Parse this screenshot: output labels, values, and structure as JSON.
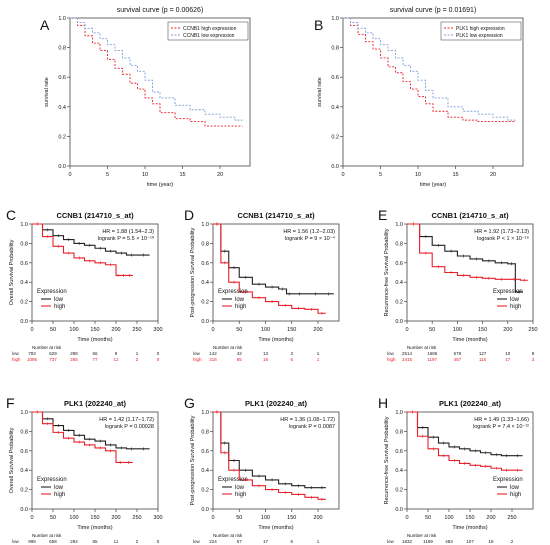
{
  "panel_letters": [
    "A",
    "B",
    "C",
    "D",
    "E",
    "F",
    "G",
    "H"
  ],
  "colors": {
    "high": "#e8202a",
    "low": "#222222",
    "low_dotted": "#7b9fd8",
    "grid": "#999999"
  },
  "chart_data": [
    {
      "type": "line",
      "panel": "A",
      "title": "survival curve (p = 0.00626)",
      "xlabel": "time (year)",
      "ylabel": "survival rate",
      "xlim": [
        0,
        24
      ],
      "ylim": [
        0,
        1
      ],
      "xticks": [
        "0",
        "5",
        "10",
        "15",
        "20"
      ],
      "yticks": [
        "0.0",
        "0.2",
        "0.4",
        "0.6",
        "0.8",
        "1.0"
      ],
      "legend": "top-right",
      "series": [
        {
          "name": "CCNB1 high expression",
          "style": "dotted-red",
          "x": [
            0,
            1,
            2,
            3,
            4,
            5,
            6,
            7,
            8,
            9,
            10,
            11,
            12,
            14,
            16,
            18,
            20,
            22,
            23
          ],
          "y": [
            1.0,
            0.95,
            0.88,
            0.83,
            0.78,
            0.72,
            0.66,
            0.62,
            0.56,
            0.52,
            0.46,
            0.42,
            0.36,
            0.32,
            0.3,
            0.27,
            0.27,
            0.27,
            0.27
          ]
        },
        {
          "name": "CCNB1 low expression",
          "style": "dotted-blue",
          "x": [
            0,
            1,
            2,
            3,
            4,
            5,
            6,
            7,
            8,
            9,
            10,
            11,
            12,
            14,
            16,
            18,
            20,
            22,
            23
          ],
          "y": [
            1.0,
            0.97,
            0.93,
            0.9,
            0.86,
            0.82,
            0.78,
            0.73,
            0.68,
            0.64,
            0.58,
            0.5,
            0.46,
            0.41,
            0.38,
            0.35,
            0.33,
            0.31,
            0.31
          ]
        }
      ]
    },
    {
      "type": "line",
      "panel": "B",
      "title": "survival curve (p = 0.01691)",
      "xlabel": "time (year)",
      "ylabel": "survival rate",
      "xlim": [
        0,
        24
      ],
      "ylim": [
        0,
        1
      ],
      "xticks": [
        "0",
        "5",
        "10",
        "15",
        "20"
      ],
      "yticks": [
        "0.0",
        "0.2",
        "0.4",
        "0.6",
        "0.8",
        "1.0"
      ],
      "legend": "top-right",
      "series": [
        {
          "name": "PLK1 high expression",
          "style": "dotted-red",
          "x": [
            0,
            1,
            2,
            3,
            4,
            5,
            6,
            7,
            8,
            9,
            10,
            11,
            12,
            14,
            16,
            18,
            20,
            22,
            23
          ],
          "y": [
            1.0,
            0.95,
            0.89,
            0.84,
            0.79,
            0.73,
            0.67,
            0.63,
            0.57,
            0.52,
            0.47,
            0.42,
            0.37,
            0.33,
            0.31,
            0.3,
            0.3,
            0.3,
            0.3
          ]
        },
        {
          "name": "PLK1 low expression",
          "style": "dotted-blue",
          "x": [
            0,
            1,
            2,
            3,
            4,
            5,
            6,
            7,
            8,
            9,
            10,
            11,
            12,
            14,
            16,
            18,
            20,
            22,
            23
          ],
          "y": [
            1.0,
            0.97,
            0.93,
            0.9,
            0.86,
            0.82,
            0.78,
            0.73,
            0.68,
            0.64,
            0.58,
            0.51,
            0.46,
            0.4,
            0.37,
            0.35,
            0.33,
            0.31,
            0.31
          ]
        }
      ]
    },
    {
      "type": "line",
      "panel": "C",
      "title": "CCNB1 (214710_s_at)",
      "stats": [
        "HR = 1.88 (1.54−2.3)",
        "logrank P = 5.5 × 10⁻¹⁰"
      ],
      "xlabel": "Time (months)",
      "ylabel": "Overall Survival Probability",
      "xlim": [
        0,
        300
      ],
      "ylim": [
        0,
        1
      ],
      "xticks": [
        "0",
        "50",
        "100",
        "150",
        "200",
        "250",
        "300"
      ],
      "yticks": [
        "0.0",
        "0.2",
        "0.4",
        "0.6",
        "0.8",
        "1.0"
      ],
      "legend_title": "Expression",
      "legend": "bottom-left",
      "risk_header": "Number at risk",
      "risk_table": {
        "low": [
          "783",
          "629",
          "288",
          "66",
          "9",
          "1",
          "0"
        ],
        "high": [
          "1096",
          "737",
          "265",
          "77",
          "12",
          "2",
          "0"
        ]
      },
      "series": [
        {
          "name": "low",
          "x": [
            0,
            25,
            50,
            75,
            100,
            125,
            150,
            175,
            200,
            225,
            250,
            280
          ],
          "y": [
            1.0,
            0.94,
            0.88,
            0.84,
            0.8,
            0.78,
            0.75,
            0.72,
            0.7,
            0.68,
            0.68,
            0.68
          ]
        },
        {
          "name": "high",
          "x": [
            0,
            25,
            50,
            75,
            100,
            125,
            150,
            175,
            200,
            210,
            225,
            240
          ],
          "y": [
            1.0,
            0.87,
            0.77,
            0.7,
            0.65,
            0.62,
            0.6,
            0.58,
            0.47,
            0.47,
            0.47,
            0.47
          ]
        }
      ]
    },
    {
      "type": "line",
      "panel": "D",
      "title": "CCNB1 (214710_s_at)",
      "stats": [
        "HR = 1.56 (1.2−2.03)",
        "logrank P = 9 × 10⁻⁴"
      ],
      "xlabel": "Time (months)",
      "ylabel": "Post-progression Survival Probability",
      "xlim": [
        0,
        240
      ],
      "ylim": [
        0,
        1
      ],
      "xticks": [
        "0",
        "50",
        "100",
        "150",
        "200"
      ],
      "yticks": [
        "0.0",
        "0.2",
        "0.4",
        "0.6",
        "0.8",
        "1.0"
      ],
      "legend_title": "Expression",
      "legend": "bottom-left",
      "risk_header": "Number at risk",
      "risk_table": {
        "low": [
          "142",
          "42",
          "13",
          "3",
          "1"
        ],
        "high": [
          "316",
          "65",
          "18",
          "6",
          "1"
        ]
      },
      "series": [
        {
          "name": "low",
          "x": [
            0,
            15,
            30,
            50,
            75,
            100,
            125,
            140,
            150,
            180,
            210,
            230
          ],
          "y": [
            1.0,
            0.72,
            0.55,
            0.45,
            0.38,
            0.35,
            0.33,
            0.28,
            0.28,
            0.28,
            0.28,
            0.28
          ]
        },
        {
          "name": "high",
          "x": [
            0,
            15,
            30,
            50,
            75,
            100,
            125,
            150,
            175,
            200,
            215
          ],
          "y": [
            1.0,
            0.6,
            0.4,
            0.3,
            0.24,
            0.2,
            0.16,
            0.13,
            0.12,
            0.08,
            0.08
          ]
        }
      ]
    },
    {
      "type": "line",
      "panel": "E",
      "title": "CCNB1 (214710_s_at)",
      "stats": [
        "HR = 1.92 (1.73−2.13)",
        "logrank P < 1 × 10⁻¹⁶"
      ],
      "xlabel": "Time (months)",
      "ylabel": "Recurrence-free Survival Probability",
      "xlim": [
        0,
        250
      ],
      "ylim": [
        0,
        1
      ],
      "xticks": [
        "0",
        "50",
        "100",
        "150",
        "200",
        "250"
      ],
      "yticks": [
        "0.0",
        "0.2",
        "0.4",
        "0.6",
        "0.8",
        "1.0"
      ],
      "legend_title": "Expression",
      "legend": "bottom-right",
      "risk_header": "Number at risk",
      "risk_table": {
        "low": [
          "2514",
          "1686",
          "679",
          "127",
          "10",
          "9"
        ],
        "high": [
          "2415",
          "1197",
          "457",
          "115",
          "17",
          "3"
        ]
      },
      "series": [
        {
          "name": "low",
          "x": [
            0,
            25,
            50,
            75,
            100,
            125,
            150,
            175,
            200,
            215,
            230
          ],
          "y": [
            1.0,
            0.87,
            0.78,
            0.72,
            0.67,
            0.64,
            0.62,
            0.6,
            0.59,
            0.3,
            0.3
          ]
        },
        {
          "name": "high",
          "x": [
            0,
            25,
            50,
            75,
            100,
            125,
            150,
            175,
            200,
            225,
            240
          ],
          "y": [
            1.0,
            0.7,
            0.56,
            0.5,
            0.47,
            0.45,
            0.44,
            0.43,
            0.43,
            0.42,
            0.42
          ]
        }
      ]
    },
    {
      "type": "line",
      "panel": "F",
      "title": "PLK1 (202240_at)",
      "stats": [
        "HR = 1.42 (1.17−1.72)",
        "logrank P = 0.00028"
      ],
      "xlabel": "Time (months)",
      "ylabel": "Overall Survival Probability",
      "xlim": [
        0,
        300
      ],
      "ylim": [
        0,
        1
      ],
      "xticks": [
        "0",
        "50",
        "100",
        "150",
        "200",
        "250",
        "300"
      ],
      "yticks": [
        "0.0",
        "0.2",
        "0.4",
        "0.6",
        "0.8",
        "1.0"
      ],
      "legend_title": "Expression",
      "legend": "bottom-left",
      "risk_header": "Number at risk",
      "risk_table": {
        "low": [
          "995",
          "658",
          "292",
          "85",
          "11",
          "2",
          "0"
        ],
        "high": [
          "884",
          "708",
          "261",
          "58",
          "10",
          "1",
          "0"
        ]
      },
      "series": [
        {
          "name": "low",
          "x": [
            0,
            25,
            50,
            75,
            100,
            125,
            150,
            175,
            200,
            225,
            250,
            280
          ],
          "y": [
            1.0,
            0.93,
            0.86,
            0.81,
            0.76,
            0.72,
            0.7,
            0.66,
            0.63,
            0.62,
            0.62,
            0.62
          ]
        },
        {
          "name": "high",
          "x": [
            0,
            25,
            50,
            75,
            100,
            125,
            150,
            175,
            200,
            220,
            240
          ],
          "y": [
            1.0,
            0.88,
            0.79,
            0.73,
            0.69,
            0.66,
            0.63,
            0.6,
            0.48,
            0.48,
            0.48
          ]
        }
      ]
    },
    {
      "type": "line",
      "panel": "G",
      "title": "PLK1 (202240_at)",
      "stats": [
        "HR = 1.36 (1.08−1.72)",
        "logrank P = 0.0087"
      ],
      "xlabel": "Time (months)",
      "ylabel": "Post-progression Survival Probability",
      "xlim": [
        0,
        240
      ],
      "ylim": [
        0,
        1
      ],
      "xticks": [
        "0",
        "50",
        "100",
        "150",
        "200"
      ],
      "yticks": [
        "0.0",
        "0.2",
        "0.4",
        "0.6",
        "0.8",
        "1.0"
      ],
      "legend_title": "Expression",
      "legend": "bottom-left",
      "risk_header": "Number at risk",
      "risk_table": {
        "low": [
          "224",
          "57",
          "17",
          "6",
          "1"
        ],
        "high": [
          "234",
          "50",
          "14",
          "3",
          "1"
        ]
      },
      "series": [
        {
          "name": "low",
          "x": [
            0,
            15,
            30,
            50,
            75,
            100,
            125,
            150,
            175,
            200,
            215
          ],
          "y": [
            1.0,
            0.68,
            0.5,
            0.4,
            0.34,
            0.3,
            0.26,
            0.24,
            0.22,
            0.22,
            0.22
          ]
        },
        {
          "name": "high",
          "x": [
            0,
            15,
            30,
            50,
            75,
            100,
            125,
            150,
            175,
            200,
            215
          ],
          "y": [
            1.0,
            0.58,
            0.4,
            0.3,
            0.24,
            0.2,
            0.17,
            0.15,
            0.12,
            0.1,
            0.1
          ]
        }
      ]
    },
    {
      "type": "line",
      "panel": "H",
      "title": "PLK1 (202240_at)",
      "stats": [
        "HR = 1.49 (1.33−1.66)",
        "logrank P = 7.4 × 10⁻¹²"
      ],
      "xlabel": "Time (months)",
      "ylabel": "Recurrence-free Survival Probability",
      "xlim": [
        0,
        300
      ],
      "ylim": [
        0,
        1
      ],
      "xticks": [
        "0",
        "50",
        "100",
        "150",
        "200",
        "250"
      ],
      "yticks": [
        "0.0",
        "0.2",
        "0.4",
        "0.6",
        "0.8",
        "1.0"
      ],
      "legend_title": "Expression",
      "legend": "bottom-right",
      "risk_header": "Number at risk",
      "risk_table": {
        "low": [
          "1832",
          "1189",
          "483",
          "107",
          "18",
          "2"
        ],
        "high": [
          "3097",
          "1694",
          "653",
          "135",
          "12",
          "1"
        ]
      },
      "series": [
        {
          "name": "low",
          "x": [
            0,
            25,
            50,
            75,
            100,
            125,
            150,
            175,
            200,
            225,
            250,
            275
          ],
          "y": [
            1.0,
            0.84,
            0.74,
            0.68,
            0.64,
            0.62,
            0.6,
            0.58,
            0.56,
            0.55,
            0.55,
            0.55
          ]
        },
        {
          "name": "high",
          "x": [
            0,
            25,
            50,
            75,
            100,
            125,
            150,
            175,
            200,
            225,
            250,
            275
          ],
          "y": [
            1.0,
            0.75,
            0.62,
            0.55,
            0.5,
            0.47,
            0.45,
            0.44,
            0.42,
            0.4,
            0.4,
            0.4
          ]
        }
      ]
    }
  ]
}
